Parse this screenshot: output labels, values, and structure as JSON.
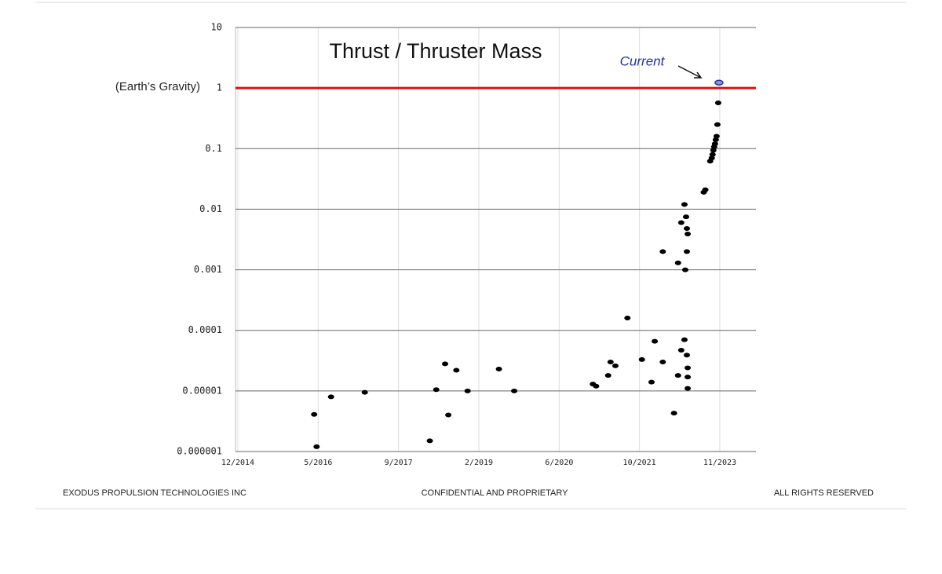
{
  "chart_data": {
    "type": "scatter",
    "title": "Thrust / Thruster Mass",
    "log_y": true,
    "color": "#000000",
    "x": [
      0.95,
      0.98,
      1.16,
      1.58,
      2.39,
      2.47,
      2.58,
      2.62,
      2.72,
      2.86,
      3.25,
      3.44,
      4.42,
      4.46,
      4.61,
      4.64,
      4.7,
      4.85,
      5.03,
      5.15,
      5.19,
      5.29,
      5.29,
      5.43,
      5.48,
      5.48,
      5.52,
      5.52,
      5.56,
      5.56,
      5.58,
      5.59,
      5.6,
      5.59,
      5.57,
      5.59,
      5.6,
      5.6,
      5.6,
      5.8,
      5.82,
      5.88,
      5.9,
      5.91,
      5.92,
      5.93,
      5.94,
      5.95,
      5.96,
      5.97,
      5.98
    ],
    "values": [
      4.1e-06,
      1.2e-06,
      8e-06,
      9.5e-06,
      1.5e-06,
      1.05e-05,
      2.8e-05,
      4e-06,
      2.2e-05,
      1e-05,
      2.3e-05,
      1e-05,
      1.3e-05,
      1.2e-05,
      1.8e-05,
      3e-05,
      2.6e-05,
      0.00016,
      3.3e-05,
      1.4e-05,
      6.6e-05,
      3e-05,
      0.002,
      4.3e-06,
      1.8e-05,
      0.0013,
      4.7e-05,
      0.006,
      0.012,
      7e-05,
      0.0075,
      0.0048,
      0.0039,
      0.002,
      0.001,
      3.9e-05,
      2.4e-05,
      1.7e-05,
      1.1e-05,
      0.019,
      0.021,
      0.062,
      0.07,
      0.08,
      0.094,
      0.107,
      0.12,
      0.14,
      0.16,
      0.25,
      0.57
    ],
    "current": {
      "x": 5.99,
      "y": 1.23,
      "label": "Current",
      "color": "#2233aa"
    },
    "reference_line": {
      "value": 1,
      "label": "(Earth’s Gravity)",
      "color": "#dd1111"
    },
    "xlim": [
      0,
      6.45
    ],
    "xticks": [
      {
        "value": 0,
        "label": "12/2014"
      },
      {
        "value": 1,
        "label": "5/2016"
      },
      {
        "value": 2,
        "label": "9/2017"
      },
      {
        "value": 3,
        "label": "2/2019"
      },
      {
        "value": 4,
        "label": "6/2020"
      },
      {
        "value": 5,
        "label": "10/2021"
      },
      {
        "value": 6,
        "label": "11/2023"
      }
    ],
    "ylim": [
      1e-06,
      10
    ],
    "yticks": [
      10,
      1,
      0.1,
      0.01,
      0.001,
      0.0001,
      1e-05,
      1e-06
    ],
    "grid": true
  },
  "footer": {
    "left": "EXODUS PROPULSION TECHNOLOGIES INC",
    "center": "CONFIDENTIAL  AND  PROPRIETARY",
    "right": "ALL RIGHTS RESERVED"
  }
}
